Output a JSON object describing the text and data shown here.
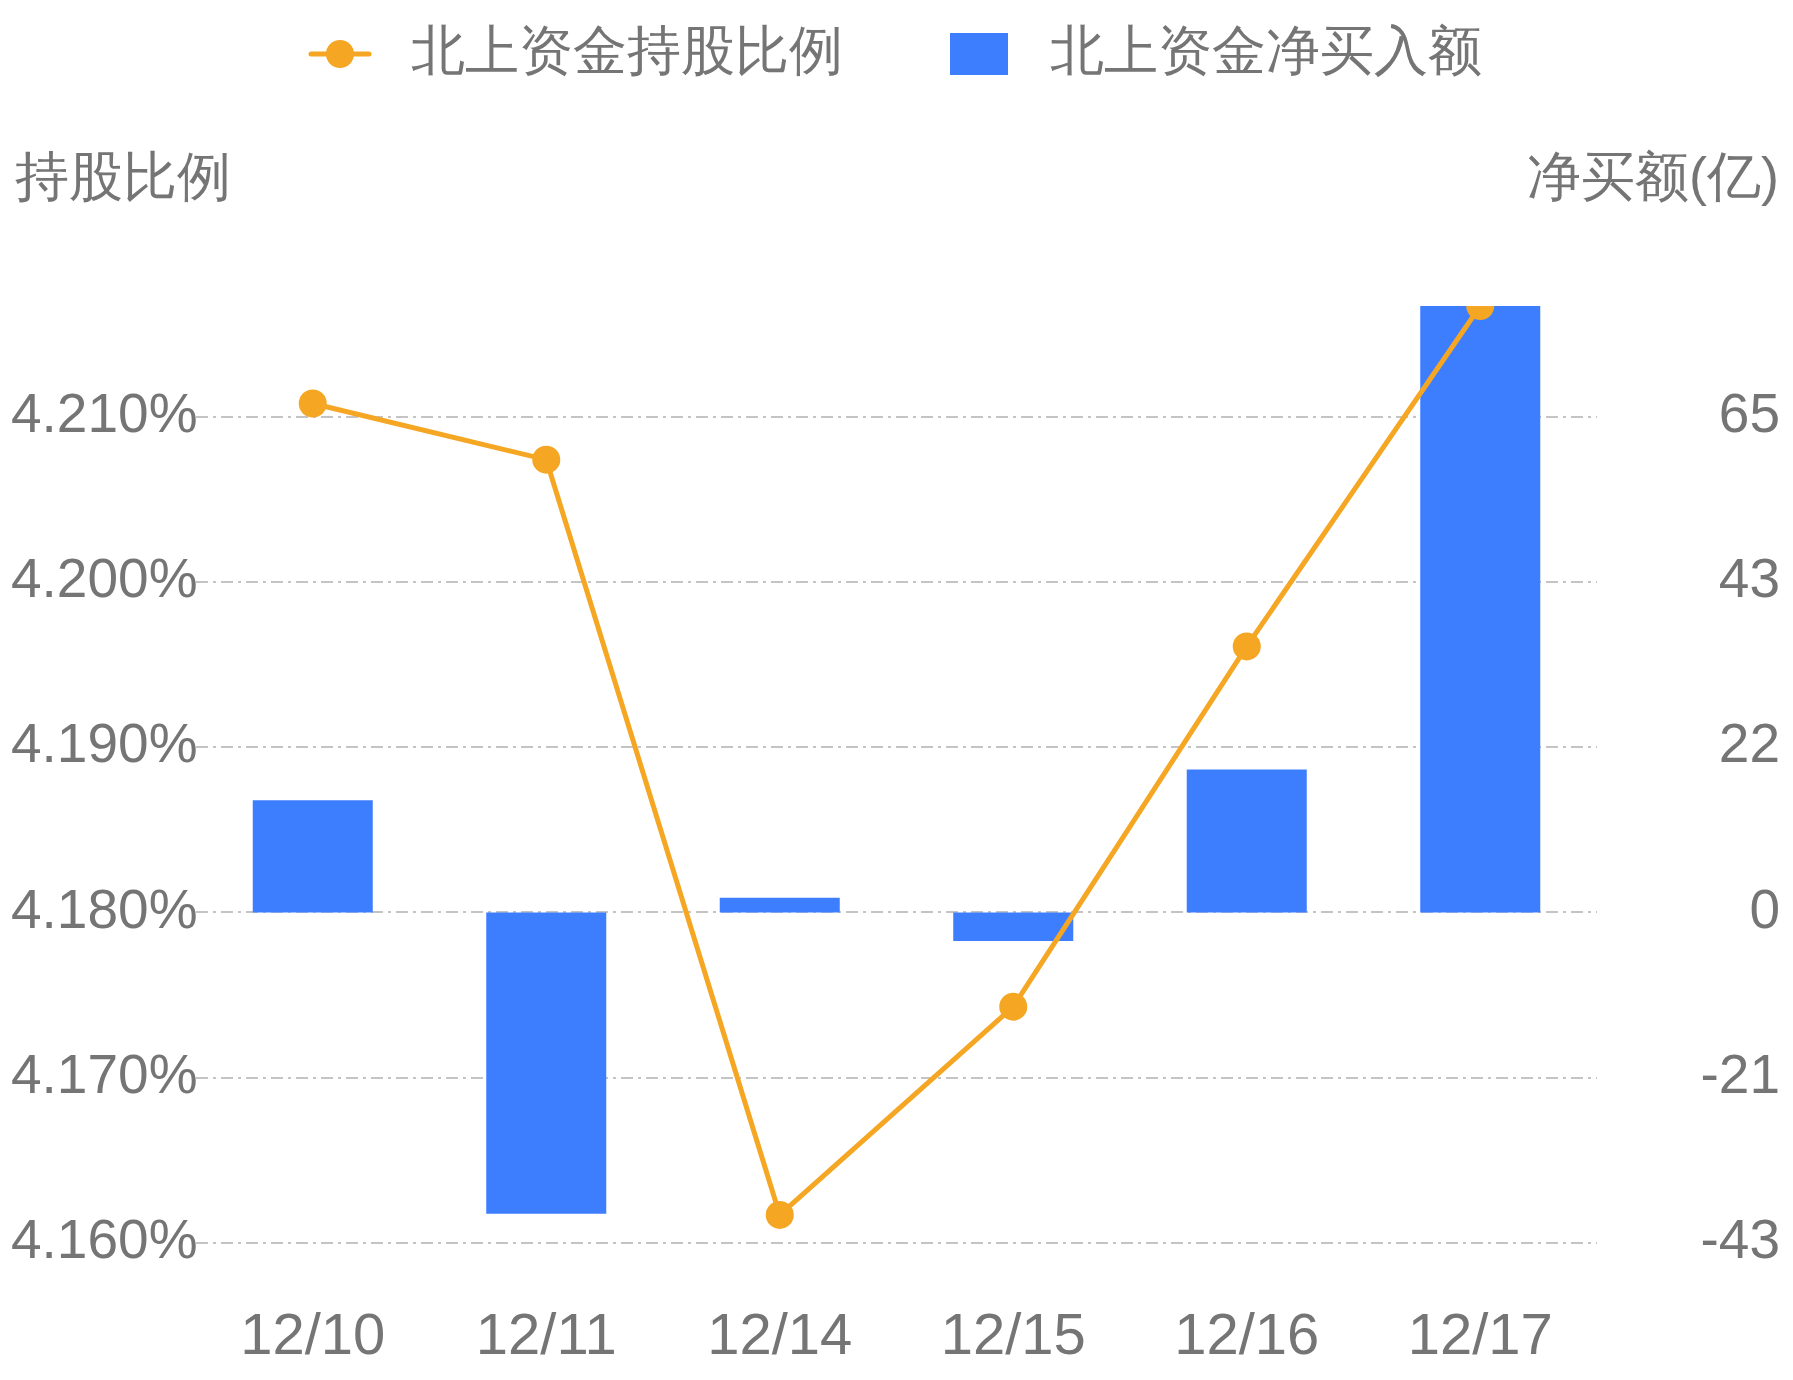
{
  "chart_data": {
    "type": "bar",
    "categories": [
      "12/10",
      "12/11",
      "12/14",
      "12/15",
      "12/16",
      "12/17"
    ],
    "series": [
      {
        "name": "北上资金持股比例",
        "type": "line",
        "color": "#f5a623",
        "values": [
          4.2108,
          4.2074,
          4.1617,
          4.1743,
          4.1961,
          4.2167
        ]
      },
      {
        "name": "北上资金净买入额",
        "axis": "y2",
        "color": "#3d7eff",
        "values": [
          14.6,
          -39.2,
          1.9,
          -3.7,
          18.6,
          78.9
        ]
      }
    ],
    "ylabel": "持股比例",
    "y2label": "净买额(亿)",
    "ylim": [
      4.16,
      4.2167
    ],
    "yticks": [
      {
        "value": 4.16,
        "label": "4.160%"
      },
      {
        "value": 4.17,
        "label": "4.170%"
      },
      {
        "value": 4.18,
        "label": "4.180%"
      },
      {
        "value": 4.19,
        "label": "4.190%"
      },
      {
        "value": 4.2,
        "label": "4.200%"
      },
      {
        "value": 4.21,
        "label": "4.210%"
      }
    ],
    "y2lim": [
      -43,
      78.9
    ],
    "y2ticks": [
      -43,
      {
        "value": -21.5,
        "label": "-21"
      },
      0,
      {
        "value": 21.5,
        "label": "22"
      },
      43,
      {
        "value": 64.5,
        "label": "65"
      }
    ],
    "grid": "y",
    "legend": "top",
    "marker": "circle",
    "line_style": "solid"
  }
}
